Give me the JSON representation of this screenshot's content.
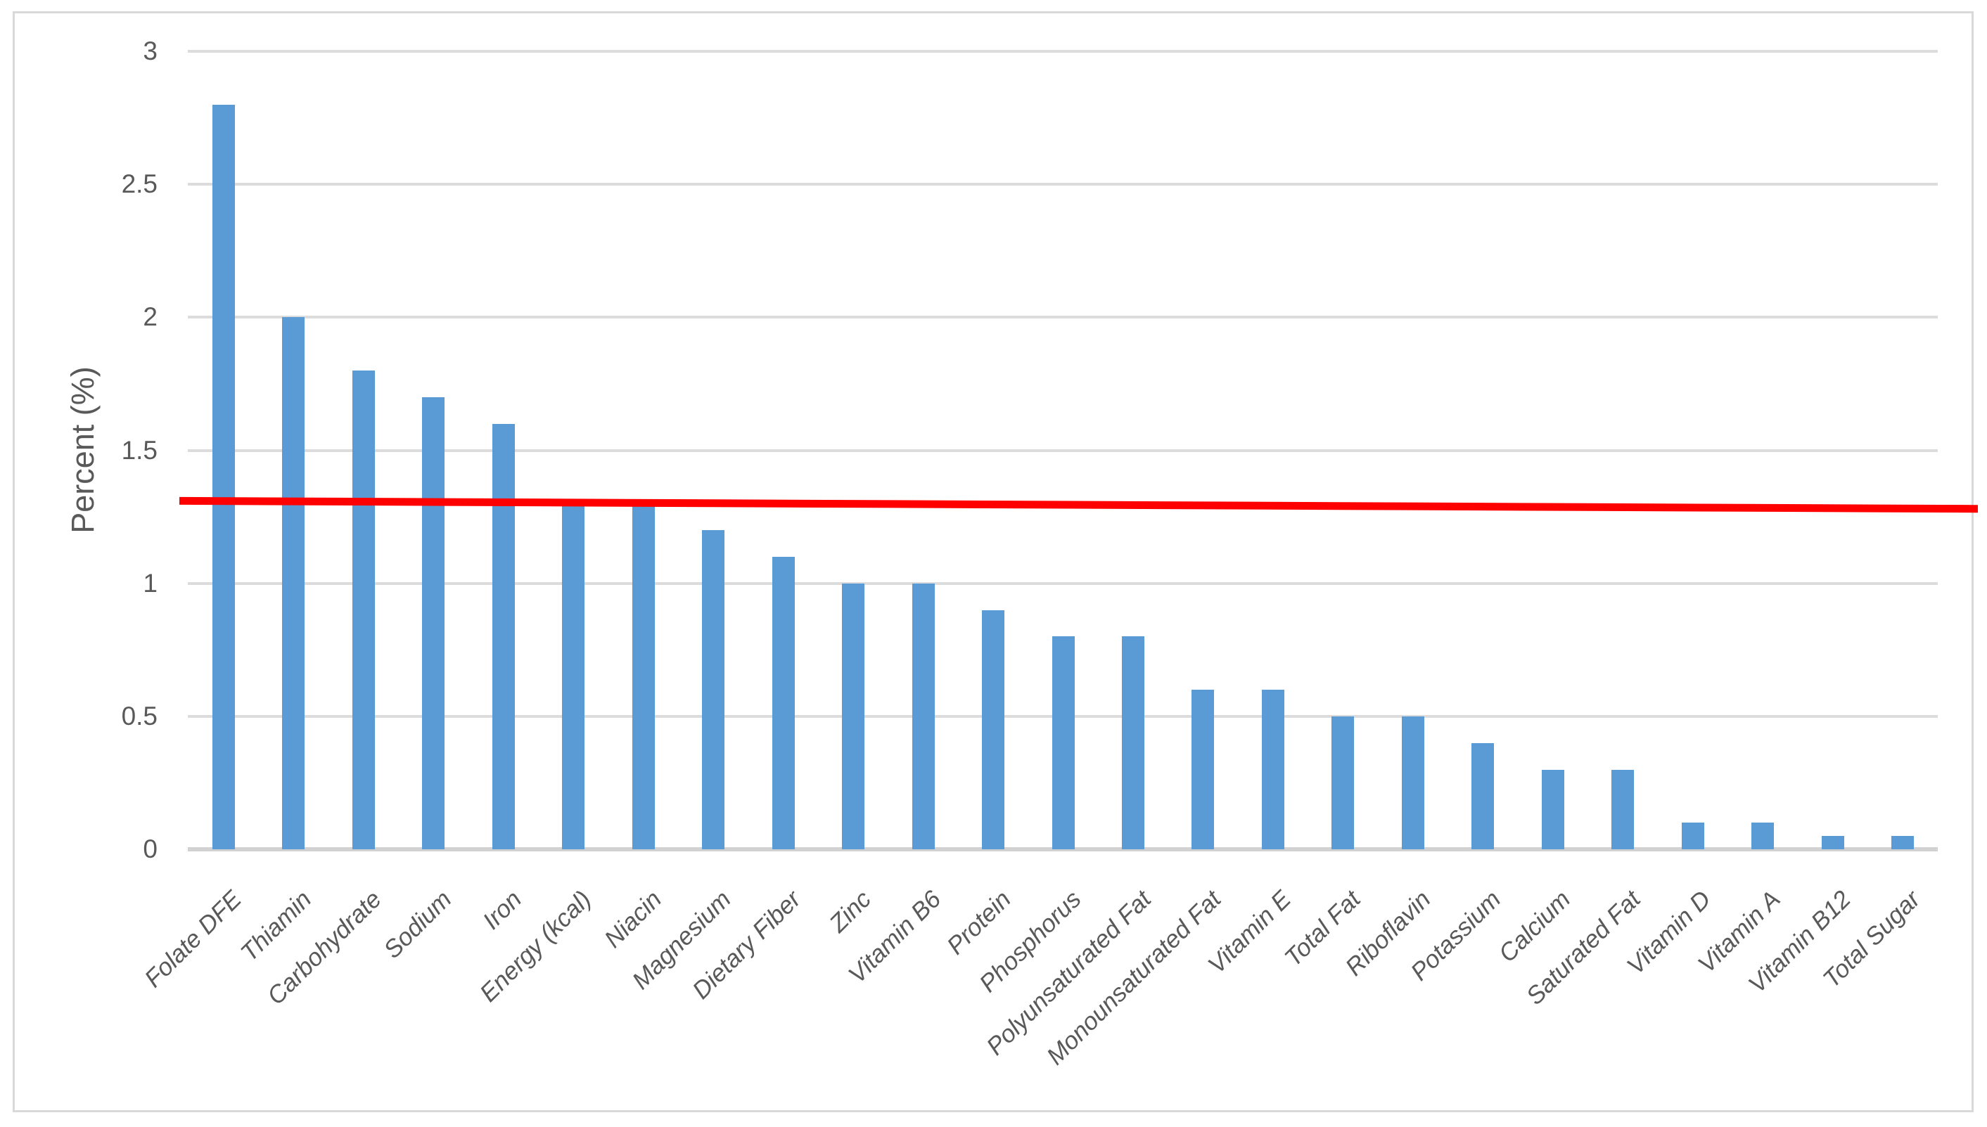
{
  "figure": {
    "background": "#ffffff",
    "border_color": "#d9d9d9"
  },
  "chart_data": {
    "type": "bar",
    "title": "",
    "ylabel": "Percent (%)",
    "xlabel": "",
    "ylim": [
      0,
      3
    ],
    "yticks": [
      0,
      0.5,
      1,
      1.5,
      2,
      2.5,
      3
    ],
    "ytick_labels": [
      "0",
      "0.5",
      "1",
      "1.5",
      "2",
      "2.5",
      "3"
    ],
    "grid": "horizontal",
    "legend_position": "none",
    "bar_color": "#5b9bd5",
    "categories": [
      "Folate DFE",
      "Thiamin",
      "Carbohydrate",
      "Sodium",
      "Iron",
      "Energy (kcal)",
      "Niacin",
      "Magnesium",
      "Dietary Fiber",
      "Zinc",
      "Vitamin B6",
      "Protein",
      "Phosphorus",
      "Polyunsaturated Fat",
      "Monounsaturated Fat",
      "Vitamin E",
      "Total Fat",
      "Riboflavin",
      "Potassium",
      "Calcium",
      "Saturated Fat",
      "Vitamin D",
      "Vitamin A",
      "Vitamin B12",
      "Total Sugar"
    ],
    "values": [
      2.8,
      2.0,
      1.8,
      1.7,
      1.6,
      1.3,
      1.3,
      1.2,
      1.1,
      1.0,
      1.0,
      0.9,
      0.8,
      0.8,
      0.6,
      0.6,
      0.5,
      0.5,
      0.4,
      0.3,
      0.3,
      0.1,
      0.1,
      0.05,
      0.05
    ],
    "reference_line": {
      "color": "#ff0000",
      "start_value": 1.31,
      "end_value": 1.28,
      "thickness": 11
    }
  }
}
